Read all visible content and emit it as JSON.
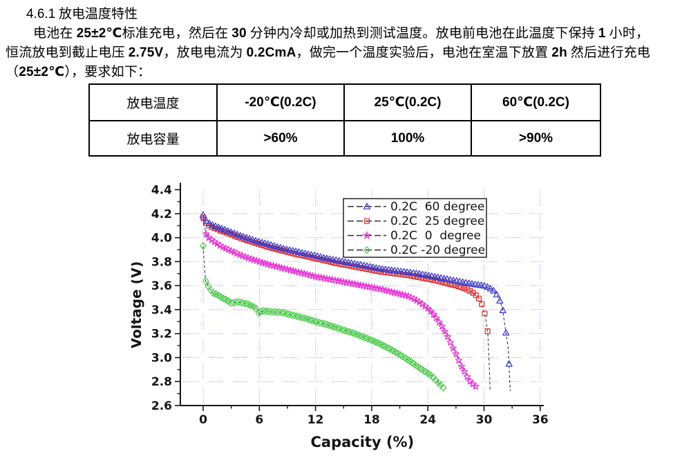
{
  "document": {
    "heading": {
      "number": "4.6.1",
      "title": " 放电温度特性"
    },
    "lines": {
      "l1": [
        "电池在 ",
        "25±2℃",
        "标准充电，然后在 ",
        "30",
        " 分钟内冷却或加热到测试温度。放电前电池在此温度下保持 ",
        "1",
        " 小时，"
      ],
      "l2": [
        "恒流放电到截止电压 ",
        "2.75V",
        "，放电电流为 ",
        "0.2CmA",
        "，做完一个温度实验后，电池在室温下放置 ",
        "2h",
        " 然后进行充电"
      ],
      "l3": [
        "（",
        "25±2℃",
        "），要求如下："
      ]
    }
  },
  "table": {
    "header_row": {
      "label": "放电温度",
      "values": [
        "-20℃(0.2C)",
        "25℃(0.2C)",
        "60℃(0.2C)"
      ]
    },
    "value_row": {
      "label": "放电容量",
      "values": [
        ">60%",
        "100%",
        ">90%"
      ]
    }
  },
  "chart_data": {
    "type": "line",
    "title": "",
    "xlabel": "Capacity (%)",
    "ylabel": "Voltage (V)",
    "xlim": [
      -2.4,
      36.5
    ],
    "ylim": [
      2.6,
      4.4
    ],
    "xticks": [
      "0",
      "6",
      "12",
      "18",
      "24",
      "30",
      "36"
    ],
    "yticks": [
      "2.6",
      "2.8",
      "3.0",
      "3.2",
      "3.4",
      "3.6",
      "3.8",
      "4.0",
      "4.2",
      "4.4"
    ],
    "grid": true,
    "grid_color": "#8888d8",
    "line_color": "#2a2a2a",
    "axis_color": "#141414",
    "legend_position": "upper-right-inside",
    "series": [
      {
        "name": "0.2C  60 degree",
        "marker": "triangle",
        "color": "#3c3cd0",
        "marker_step": 0.33,
        "points": [
          [
            0,
            4.19
          ],
          [
            0.2,
            4.15
          ],
          [
            0.5,
            4.125
          ],
          [
            1,
            4.105
          ],
          [
            2,
            4.075
          ],
          [
            3,
            4.045
          ],
          [
            4,
            4.015
          ],
          [
            5,
            3.99
          ],
          [
            6,
            3.965
          ],
          [
            7,
            3.945
          ],
          [
            8,
            3.92
          ],
          [
            9,
            3.9
          ],
          [
            10,
            3.885
          ],
          [
            11,
            3.865
          ],
          [
            12,
            3.85
          ],
          [
            13,
            3.83
          ],
          [
            14,
            3.815
          ],
          [
            15,
            3.8
          ],
          [
            16,
            3.785
          ],
          [
            17,
            3.77
          ],
          [
            18,
            3.755
          ],
          [
            19,
            3.74
          ],
          [
            20,
            3.73
          ],
          [
            21,
            3.72
          ],
          [
            22,
            3.71
          ],
          [
            23,
            3.7
          ],
          [
            24,
            3.685
          ],
          [
            25,
            3.67
          ],
          [
            26,
            3.655
          ],
          [
            27,
            3.64
          ],
          [
            28,
            3.625
          ],
          [
            29,
            3.61
          ],
          [
            30,
            3.6
          ],
          [
            30.5,
            3.585
          ],
          [
            31,
            3.56
          ],
          [
            31.4,
            3.52
          ],
          [
            31.7,
            3.47
          ],
          [
            32,
            3.4
          ],
          [
            32.2,
            3.28
          ],
          [
            32.6,
            3.07
          ],
          [
            32.8,
            2.72
          ]
        ]
      },
      {
        "name": "0.2C  25 degree",
        "marker": "square",
        "color": "#e03030",
        "marker_step": 0.31,
        "points": [
          [
            0,
            4.17
          ],
          [
            0.2,
            4.13
          ],
          [
            0.5,
            4.105
          ],
          [
            1,
            4.085
          ],
          [
            2,
            4.055
          ],
          [
            3,
            4.025
          ],
          [
            4,
            3.995
          ],
          [
            5,
            3.97
          ],
          [
            6,
            3.945
          ],
          [
            7,
            3.92
          ],
          [
            8,
            3.9
          ],
          [
            9,
            3.88
          ],
          [
            10,
            3.86
          ],
          [
            11,
            3.845
          ],
          [
            12,
            3.825
          ],
          [
            13,
            3.81
          ],
          [
            14,
            3.79
          ],
          [
            15,
            3.775
          ],
          [
            16,
            3.76
          ],
          [
            17,
            3.745
          ],
          [
            18,
            3.73
          ],
          [
            19,
            3.715
          ],
          [
            20,
            3.705
          ],
          [
            21,
            3.695
          ],
          [
            22,
            3.685
          ],
          [
            23,
            3.67
          ],
          [
            24,
            3.655
          ],
          [
            25,
            3.64
          ],
          [
            26,
            3.62
          ],
          [
            27,
            3.6
          ],
          [
            28,
            3.575
          ],
          [
            28.5,
            3.555
          ],
          [
            29,
            3.53
          ],
          [
            29.4,
            3.5
          ],
          [
            29.8,
            3.44
          ],
          [
            30.1,
            3.36
          ],
          [
            30.4,
            3.21
          ],
          [
            30.6,
            2.86
          ],
          [
            30.65,
            2.72
          ]
        ]
      },
      {
        "name": "0.2C  0  degree",
        "marker": "star",
        "color": "#e838d8",
        "marker_step": 0.3,
        "points": [
          [
            0,
            4.16
          ],
          [
            0.3,
            4.03
          ],
          [
            0.6,
            4.0
          ],
          [
            1,
            3.975
          ],
          [
            1.5,
            3.95
          ],
          [
            2,
            3.925
          ],
          [
            3,
            3.89
          ],
          [
            4,
            3.855
          ],
          [
            5,
            3.825
          ],
          [
            6,
            3.8
          ],
          [
            7,
            3.775
          ],
          [
            8,
            3.755
          ],
          [
            9,
            3.735
          ],
          [
            10,
            3.715
          ],
          [
            11,
            3.695
          ],
          [
            12,
            3.675
          ],
          [
            13,
            3.66
          ],
          [
            14,
            3.645
          ],
          [
            15,
            3.63
          ],
          [
            16,
            3.615
          ],
          [
            17,
            3.6
          ],
          [
            18,
            3.585
          ],
          [
            19,
            3.57
          ],
          [
            20,
            3.55
          ],
          [
            21,
            3.53
          ],
          [
            22,
            3.51
          ],
          [
            22.5,
            3.49
          ],
          [
            23,
            3.47
          ],
          [
            23.5,
            3.44
          ],
          [
            24,
            3.41
          ],
          [
            24.5,
            3.37
          ],
          [
            25,
            3.32
          ],
          [
            25.5,
            3.26
          ],
          [
            26,
            3.19
          ],
          [
            26.5,
            3.11
          ],
          [
            27,
            3.03
          ],
          [
            27.5,
            2.94
          ],
          [
            28,
            2.87
          ],
          [
            28.4,
            2.81
          ],
          [
            28.8,
            2.78
          ],
          [
            29.1,
            2.76
          ]
        ]
      },
      {
        "name": "0.2C -20 degree",
        "marker": "diamond",
        "color": "#4ad04a",
        "marker_step": 0.27,
        "points": [
          [
            0,
            3.93
          ],
          [
            0.25,
            3.64
          ],
          [
            0.5,
            3.6
          ],
          [
            0.8,
            3.565
          ],
          [
            1,
            3.54
          ],
          [
            1.5,
            3.525
          ],
          [
            2,
            3.5
          ],
          [
            2.5,
            3.48
          ],
          [
            3,
            3.455
          ],
          [
            3.4,
            3.46
          ],
          [
            3.8,
            3.465
          ],
          [
            4.2,
            3.455
          ],
          [
            4.6,
            3.45
          ],
          [
            5,
            3.44
          ],
          [
            5.5,
            3.42
          ],
          [
            5.8,
            3.4
          ],
          [
            6,
            3.36
          ],
          [
            6.2,
            3.385
          ],
          [
            6.6,
            3.39
          ],
          [
            7,
            3.385
          ],
          [
            7.5,
            3.38
          ],
          [
            8,
            3.38
          ],
          [
            8.5,
            3.375
          ],
          [
            9,
            3.365
          ],
          [
            10,
            3.345
          ],
          [
            11,
            3.325
          ],
          [
            12,
            3.3
          ],
          [
            13,
            3.28
          ],
          [
            14,
            3.255
          ],
          [
            15,
            3.23
          ],
          [
            16,
            3.205
          ],
          [
            17,
            3.175
          ],
          [
            18,
            3.145
          ],
          [
            19,
            3.11
          ],
          [
            20,
            3.07
          ],
          [
            21,
            3.025
          ],
          [
            22,
            2.975
          ],
          [
            23,
            2.92
          ],
          [
            24,
            2.87
          ],
          [
            24.5,
            2.84
          ],
          [
            25,
            2.8
          ],
          [
            25.4,
            2.77
          ],
          [
            25.7,
            2.745
          ]
        ]
      }
    ]
  }
}
